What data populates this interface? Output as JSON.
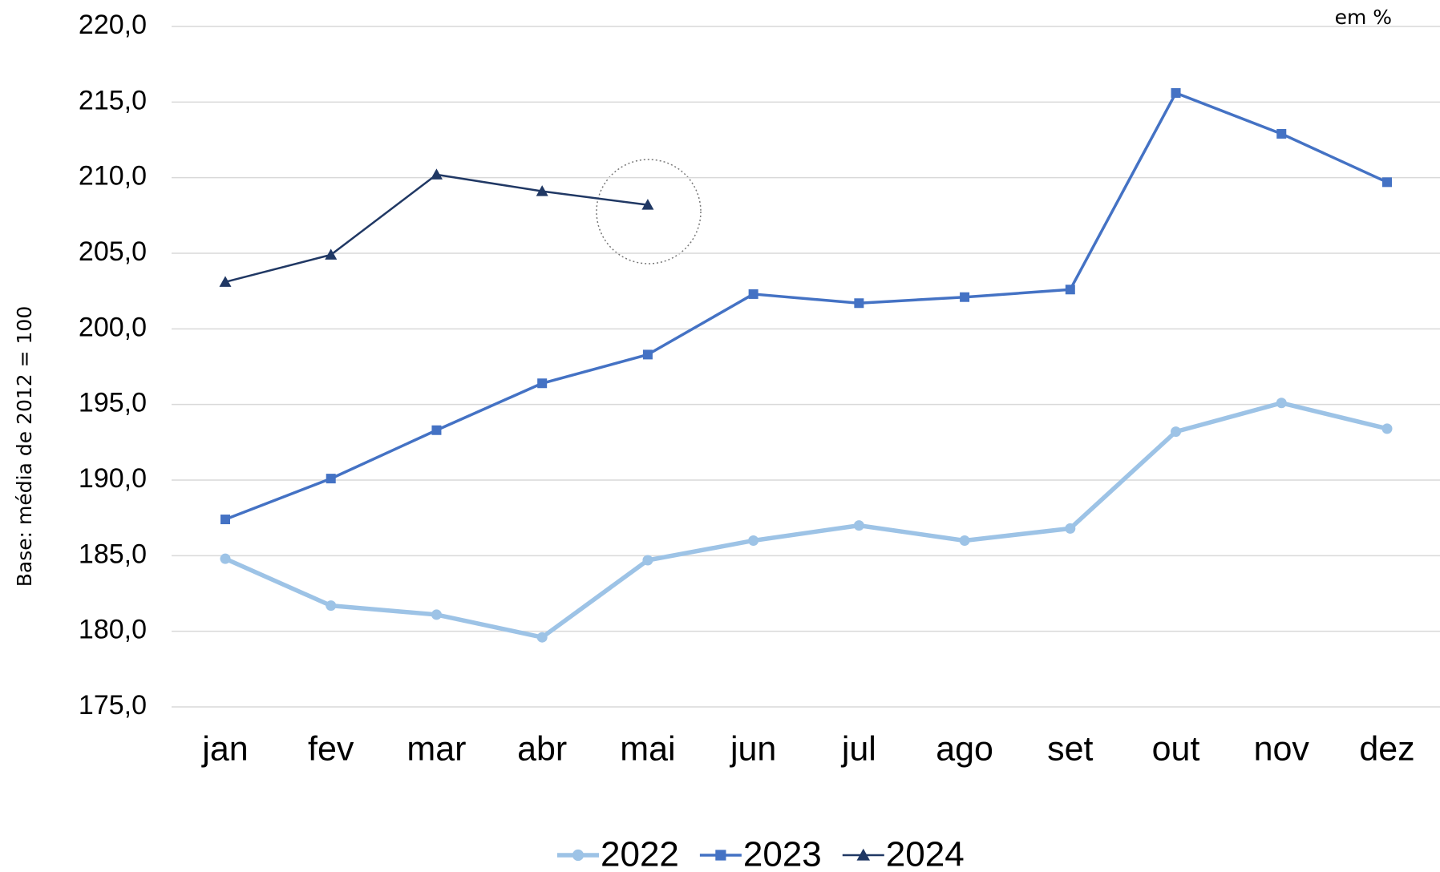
{
  "chart_data": {
    "type": "line",
    "annotation": "em %",
    "y_label": "Base: média de 2012 = 100",
    "categories": [
      "jan",
      "fev",
      "mar",
      "abr",
      "mai",
      "jun",
      "jul",
      "ago",
      "set",
      "out",
      "nov",
      "dez"
    ],
    "series": [
      {
        "name": "2022",
        "color": "#9dc3e6",
        "marker": "circle",
        "values": [
          184.8,
          181.7,
          181.1,
          179.6,
          184.7,
          186.0,
          187.0,
          186.0,
          186.8,
          193.2,
          195.1,
          193.4
        ]
      },
      {
        "name": "2023",
        "color": "#4472c4",
        "marker": "square",
        "values": [
          187.4,
          190.1,
          193.3,
          196.4,
          198.3,
          202.3,
          201.7,
          202.1,
          202.6,
          215.6,
          212.9,
          209.7
        ]
      },
      {
        "name": "2024",
        "color": "#203864",
        "marker": "triangle",
        "values": [
          203.1,
          204.9,
          210.2,
          209.1,
          208.2,
          null,
          null,
          null,
          null,
          null,
          null,
          null
        ]
      }
    ],
    "ylim": [
      175,
      220
    ],
    "yticks": [
      {
        "value": 175,
        "label": "175,0"
      },
      {
        "value": 180,
        "label": "180,0"
      },
      {
        "value": 185,
        "label": "185,0"
      },
      {
        "value": 190,
        "label": "190,0"
      },
      {
        "value": 195,
        "label": "195,0"
      },
      {
        "value": 200,
        "label": "200,0"
      },
      {
        "value": 205,
        "label": "205,0"
      },
      {
        "value": 210,
        "label": "210,0"
      },
      {
        "value": 215,
        "label": "215,0"
      },
      {
        "value": 220,
        "label": "220,0"
      }
    ],
    "grid": true,
    "legend": "bottom"
  }
}
